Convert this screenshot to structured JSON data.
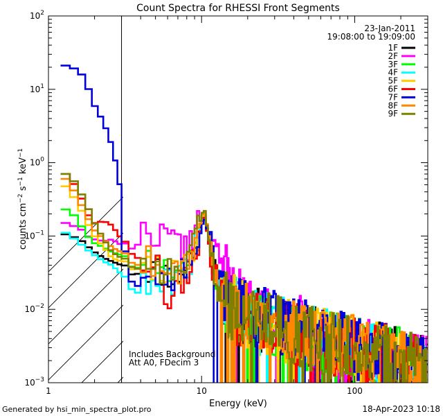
{
  "chart_data": {
    "type": "line",
    "title": "Count Spectra for RHESSI Front Segments",
    "xlabel": "Energy (keV)",
    "ylabel": {
      "base": "counts cm",
      "sup1": "−2",
      "mid1": " s",
      "sup2": "−1",
      "mid2": " keV",
      "sup3": "−1"
    },
    "xscale": "log",
    "yscale": "log",
    "xlim": [
      1,
      300
    ],
    "ylim": [
      0.001,
      100
    ],
    "x_ticks": [
      {
        "value": 1,
        "label": "1"
      },
      {
        "value": 10,
        "label": "10"
      },
      {
        "value": 100,
        "label": "100"
      }
    ],
    "y_ticks": [
      {
        "value": 0.001,
        "base": "10",
        "exp": "−3"
      },
      {
        "value": 0.01,
        "base": "10",
        "exp": "−2"
      },
      {
        "value": 0.1,
        "base": "10",
        "exp": "−1"
      },
      {
        "value": 1,
        "base": "10",
        "exp": "0"
      },
      {
        "value": 10,
        "base": "10",
        "exp": "1"
      },
      {
        "value": 100,
        "base": "10",
        "exp": "2"
      }
    ],
    "shaded_region": {
      "x": [
        1,
        3
      ],
      "pattern": "diagonal-hatch"
    },
    "date": "23-Jan-2011",
    "time_range": "19:08:00 to 19:09:00",
    "annotation": [
      "Includes Background",
      "Att A0, FDecim 3"
    ],
    "legend_position": "top-right",
    "series": [
      {
        "name": "1F",
        "color": "#000000",
        "profile": [
          [
            1.2,
            0.11
          ],
          [
            1.4,
            0.1
          ],
          [
            1.6,
            0.09
          ],
          [
            1.8,
            0.072
          ],
          [
            2.0,
            0.06
          ],
          [
            2.3,
            0.05
          ],
          [
            2.6,
            0.045
          ],
          [
            3.0,
            0.04
          ],
          [
            4.0,
            0.038
          ],
          [
            5.0,
            0.035
          ],
          [
            7.0,
            0.028
          ],
          [
            9.0,
            0.06
          ],
          [
            10.4,
            0.22
          ],
          [
            12.0,
            0.04
          ],
          [
            15.0,
            0.012
          ],
          [
            20.0,
            0.008
          ],
          [
            30.0,
            0.006
          ],
          [
            50.0,
            0.004
          ],
          [
            100.0,
            0.003
          ],
          [
            200.0,
            0.002
          ],
          [
            290.0,
            0.0015
          ]
        ],
        "seed": 11
      },
      {
        "name": "2F",
        "color": "#ff00ff",
        "profile": [
          [
            1.2,
            0.16
          ],
          [
            1.4,
            0.14
          ],
          [
            1.6,
            0.13
          ],
          [
            1.8,
            0.1
          ],
          [
            2.0,
            0.09
          ],
          [
            2.3,
            0.085
          ],
          [
            2.6,
            0.09
          ],
          [
            3.0,
            0.075
          ],
          [
            4.0,
            0.1
          ],
          [
            5.0,
            0.12
          ],
          [
            6.0,
            0.09
          ],
          [
            8.0,
            0.07
          ],
          [
            10.4,
            0.2
          ],
          [
            12.0,
            0.06
          ],
          [
            14.0,
            0.035
          ],
          [
            20.0,
            0.01
          ],
          [
            30.0,
            0.007
          ],
          [
            50.0,
            0.005
          ],
          [
            100.0,
            0.003
          ],
          [
            200.0,
            0.002
          ],
          [
            290.0,
            0.0015
          ]
        ],
        "seed": 22
      },
      {
        "name": "3F",
        "color": "#00ff00",
        "profile": [
          [
            1.2,
            0.24
          ],
          [
            1.4,
            0.22
          ],
          [
            1.6,
            0.15
          ],
          [
            1.8,
            0.1
          ],
          [
            2.0,
            0.08
          ],
          [
            2.3,
            0.07
          ],
          [
            2.6,
            0.06
          ],
          [
            3.0,
            0.055
          ],
          [
            4.0,
            0.045
          ],
          [
            5.0,
            0.04
          ],
          [
            7.0,
            0.025
          ],
          [
            9.0,
            0.05
          ],
          [
            10.4,
            0.2
          ],
          [
            12.0,
            0.03
          ],
          [
            15.0,
            0.01
          ],
          [
            20.0,
            0.007
          ],
          [
            30.0,
            0.006
          ],
          [
            50.0,
            0.004
          ],
          [
            100.0,
            0.003
          ],
          [
            200.0,
            0.002
          ],
          [
            290.0,
            0.0015
          ]
        ],
        "seed": 33
      },
      {
        "name": "4F",
        "color": "#00ffff",
        "profile": [
          [
            1.2,
            0.12
          ],
          [
            1.4,
            0.1
          ],
          [
            1.6,
            0.08
          ],
          [
            1.8,
            0.065
          ],
          [
            2.0,
            0.055
          ],
          [
            2.3,
            0.045
          ],
          [
            2.6,
            0.04
          ],
          [
            3.0,
            0.03
          ],
          [
            4.0,
            0.02
          ],
          [
            5.0,
            0.02
          ],
          [
            7.0,
            0.025
          ],
          [
            9.0,
            0.06
          ],
          [
            10.4,
            0.2
          ],
          [
            12.0,
            0.04
          ],
          [
            15.0,
            0.012
          ],
          [
            20.0,
            0.007
          ],
          [
            30.0,
            0.006
          ],
          [
            50.0,
            0.004
          ],
          [
            100.0,
            0.003
          ],
          [
            200.0,
            0.002
          ],
          [
            290.0,
            0.0015
          ]
        ],
        "seed": 44
      },
      {
        "name": "5F",
        "color": "#ffcc00",
        "profile": [
          [
            1.2,
            0.55
          ],
          [
            1.4,
            0.4
          ],
          [
            1.6,
            0.25
          ],
          [
            1.8,
            0.15
          ],
          [
            2.0,
            0.1
          ],
          [
            2.3,
            0.07
          ],
          [
            2.6,
            0.05
          ],
          [
            3.0,
            0.045
          ],
          [
            4.0,
            0.045
          ],
          [
            5.0,
            0.04
          ],
          [
            7.0,
            0.035
          ],
          [
            9.0,
            0.07
          ],
          [
            10.4,
            0.22
          ],
          [
            12.0,
            0.04
          ],
          [
            15.0,
            0.012
          ],
          [
            20.0,
            0.008
          ],
          [
            30.0,
            0.006
          ],
          [
            50.0,
            0.004
          ],
          [
            100.0,
            0.003
          ],
          [
            200.0,
            0.002
          ],
          [
            290.0,
            0.0015
          ]
        ],
        "seed": 55
      },
      {
        "name": "6F",
        "color": "#ff0000",
        "profile": [
          [
            1.2,
            0.8
          ],
          [
            1.4,
            0.6
          ],
          [
            1.6,
            0.38
          ],
          [
            1.8,
            0.2
          ],
          [
            2.0,
            0.15
          ],
          [
            2.3,
            0.16
          ],
          [
            2.6,
            0.14
          ],
          [
            3.0,
            0.09
          ],
          [
            4.0,
            0.06
          ],
          [
            5.0,
            0.04
          ],
          [
            6.0,
            0.015
          ],
          [
            7.0,
            0.02
          ],
          [
            9.0,
            0.05
          ],
          [
            10.4,
            0.2
          ],
          [
            12.0,
            0.03
          ],
          [
            15.0,
            0.01
          ],
          [
            20.0,
            0.007
          ],
          [
            30.0,
            0.006
          ],
          [
            50.0,
            0.004
          ],
          [
            100.0,
            0.003
          ],
          [
            200.0,
            0.002
          ],
          [
            290.0,
            0.0015
          ]
        ],
        "seed": 66
      },
      {
        "name": "7F",
        "color": "#0000dd",
        "profile": [
          [
            1.2,
            22.0
          ],
          [
            1.4,
            20.0
          ],
          [
            1.6,
            18.0
          ],
          [
            1.8,
            11.0
          ],
          [
            2.0,
            6.0
          ],
          [
            2.3,
            3.5
          ],
          [
            2.6,
            1.7
          ],
          [
            2.9,
            0.6
          ],
          [
            3.0,
            0.09
          ],
          [
            3.5,
            0.03
          ],
          [
            4.0,
            0.025
          ],
          [
            5.0,
            0.03
          ],
          [
            7.0,
            0.03
          ],
          [
            9.0,
            0.05
          ],
          [
            10.4,
            0.18
          ],
          [
            12.0,
            0.05
          ],
          [
            15.0,
            0.012
          ],
          [
            20.0,
            0.009
          ],
          [
            30.0,
            0.007
          ],
          [
            50.0,
            0.005
          ],
          [
            100.0,
            0.003
          ],
          [
            200.0,
            0.002
          ],
          [
            290.0,
            0.0015
          ]
        ],
        "seed": 77
      },
      {
        "name": "8F",
        "color": "#ff8800",
        "profile": [
          [
            1.2,
            0.7
          ],
          [
            1.4,
            0.5
          ],
          [
            1.6,
            0.3
          ],
          [
            1.8,
            0.18
          ],
          [
            2.0,
            0.12
          ],
          [
            2.3,
            0.09
          ],
          [
            2.6,
            0.07
          ],
          [
            3.0,
            0.06
          ],
          [
            4.0,
            0.05
          ],
          [
            5.0,
            0.045
          ],
          [
            7.0,
            0.035
          ],
          [
            9.0,
            0.07
          ],
          [
            10.4,
            0.24
          ],
          [
            12.0,
            0.04
          ],
          [
            15.0,
            0.012
          ],
          [
            20.0,
            0.008
          ],
          [
            30.0,
            0.006
          ],
          [
            50.0,
            0.004
          ],
          [
            100.0,
            0.003
          ],
          [
            200.0,
            0.002
          ],
          [
            290.0,
            0.0015
          ]
        ],
        "seed": 88
      },
      {
        "name": "9F",
        "color": "#808000",
        "profile": [
          [
            1.2,
            0.75
          ],
          [
            1.4,
            0.65
          ],
          [
            1.6,
            0.42
          ],
          [
            1.8,
            0.25
          ],
          [
            2.0,
            0.15
          ],
          [
            2.3,
            0.09
          ],
          [
            2.6,
            0.06
          ],
          [
            3.0,
            0.05
          ],
          [
            4.0,
            0.045
          ],
          [
            5.0,
            0.04
          ],
          [
            7.0,
            0.03
          ],
          [
            9.0,
            0.08
          ],
          [
            10.4,
            0.25
          ],
          [
            12.0,
            0.03
          ],
          [
            15.0,
            0.01
          ],
          [
            20.0,
            0.007
          ],
          [
            30.0,
            0.006
          ],
          [
            50.0,
            0.004
          ],
          [
            100.0,
            0.003
          ],
          [
            200.0,
            0.002
          ],
          [
            290.0,
            0.0015
          ]
        ],
        "seed": 99
      }
    ]
  },
  "footer": {
    "generated_by": "Generated by hsi_min_spectra_plot.pro",
    "date": "18-Apr-2023 10:18"
  }
}
